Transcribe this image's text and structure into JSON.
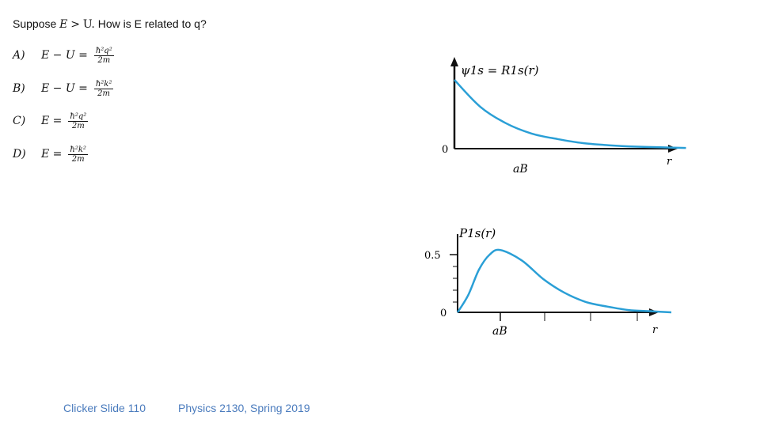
{
  "question": {
    "prefix": "Suppose",
    "lhs": "E",
    "op": ">",
    "rhs": "U.",
    "tail": "How is E related to q?"
  },
  "options": [
    {
      "label": "A)",
      "lhs": "E − U =",
      "num": "ħ²q²",
      "den": "2m"
    },
    {
      "label": "B)",
      "lhs": "E − U =",
      "num": "ħ²k²",
      "den": "2m"
    },
    {
      "label": "C)",
      "lhs": "E =",
      "num": "ħ²q²",
      "den": "2m"
    },
    {
      "label": "D)",
      "lhs": "E =",
      "num": "ħ²k²",
      "den": "2m"
    }
  ],
  "chart_data": [
    {
      "type": "line",
      "ylabel": "ψ1s = R1s(r)",
      "xlabel": "r",
      "origin_label": "0",
      "x_tick_label": "aB",
      "color": "#2a9fd6",
      "x": [
        0,
        0.5,
        1,
        1.5,
        2,
        2.5,
        3,
        3.5,
        4,
        4.5
      ],
      "y": [
        1.0,
        0.61,
        0.37,
        0.22,
        0.14,
        0.08,
        0.05,
        0.03,
        0.02,
        0.01
      ]
    },
    {
      "type": "line",
      "ylabel": "P1s(r)",
      "xlabel": "r",
      "origin_label": "0",
      "y_tick_label": "0.5",
      "x_tick_label": "aB",
      "color": "#2a9fd6",
      "x": [
        0,
        0.25,
        0.5,
        0.75,
        1,
        1.5,
        2,
        2.5,
        3,
        3.5,
        4,
        4.5,
        5
      ],
      "y": [
        0,
        0.15,
        0.37,
        0.5,
        0.54,
        0.45,
        0.29,
        0.17,
        0.09,
        0.05,
        0.02,
        0.01,
        0.0
      ]
    }
  ],
  "footer": {
    "slide": "Clicker Slide 110",
    "course": "Physics 2130, Spring 2019"
  }
}
